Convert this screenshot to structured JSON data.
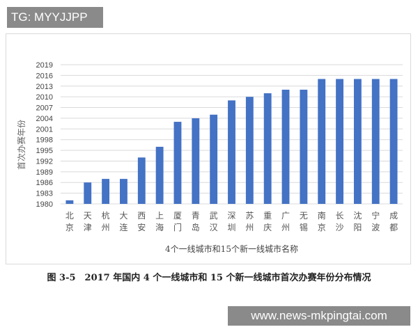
{
  "watermarks": {
    "top": "TG: MYYJJPP",
    "bottom": "www.news-mkpingtai.com"
  },
  "caption": "图 3-5　2017 年国内 4 个一线城市和 15 个新一线城市首次办赛年份分布情况",
  "chart_data": {
    "type": "bar",
    "title": "",
    "xlabel": "4个一线城市和15个新一线城市名称",
    "ylabel": "首次办赛年份",
    "ylim": [
      1980,
      2019
    ],
    "yticks": [
      1980,
      1983,
      1986,
      1989,
      1992,
      1995,
      1998,
      2001,
      2004,
      2007,
      2010,
      2013,
      2016,
      2019
    ],
    "grid": true,
    "bar_color": "#4472c4",
    "categories": [
      "北京",
      "天津",
      "杭州",
      "大连",
      "西安",
      "上海",
      "厦门",
      "青岛",
      "武汉",
      "深圳",
      "苏州",
      "重庆",
      "广州",
      "无锡",
      "南京",
      "长沙",
      "沈阳",
      "宁波",
      "成都"
    ],
    "values": [
      1981,
      1986,
      1987,
      1987,
      1993,
      1996,
      2003,
      2004,
      2005,
      2009,
      2010,
      2011,
      2012,
      2012,
      2015,
      2015,
      2015,
      2015,
      2015
    ]
  }
}
